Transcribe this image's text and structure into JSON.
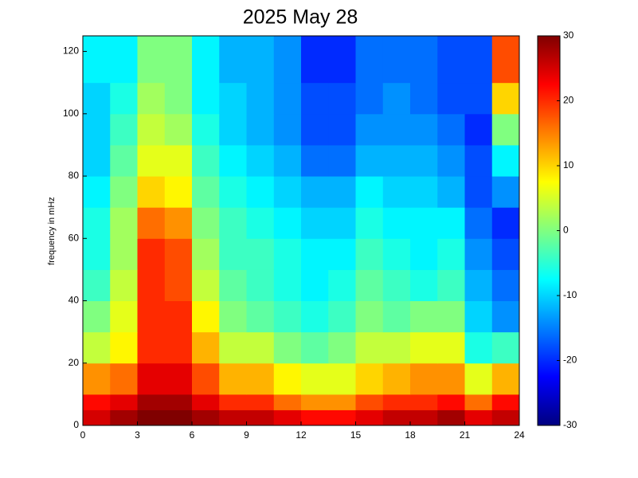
{
  "chart_data": {
    "type": "heatmap",
    "title": "2025 May 28",
    "y_label": "frequency in mHz",
    "x_edges": [
      0,
      1.5,
      3,
      4.5,
      6,
      7.5,
      9,
      10.5,
      12,
      13.5,
      15,
      16.5,
      18,
      19.5,
      21,
      22.5,
      24
    ],
    "y_edges": [
      0,
      5,
      10,
      20,
      30,
      40,
      50,
      60,
      70,
      80,
      90,
      100,
      110,
      125
    ],
    "z": [
      [
        25,
        28,
        30,
        30,
        28,
        26,
        26,
        24,
        22,
        22,
        24,
        26,
        26,
        28,
        24,
        26
      ],
      [
        22,
        24,
        28,
        28,
        24,
        20,
        20,
        16,
        14,
        14,
        18,
        20,
        20,
        22,
        16,
        22
      ],
      [
        14,
        16,
        24,
        24,
        18,
        12,
        12,
        8,
        6,
        6,
        10,
        12,
        14,
        14,
        6,
        12
      ],
      [
        4,
        8,
        20,
        20,
        12,
        4,
        4,
        0,
        -2,
        0,
        4,
        4,
        6,
        6,
        -6,
        -4
      ],
      [
        0,
        6,
        20,
        20,
        8,
        0,
        -2,
        -4,
        -6,
        -4,
        0,
        -2,
        0,
        0,
        -10,
        -14
      ],
      [
        -4,
        4,
        20,
        18,
        4,
        -2,
        -4,
        -6,
        -8,
        -6,
        -2,
        -4,
        -6,
        -4,
        -12,
        -16
      ],
      [
        -6,
        2,
        20,
        18,
        2,
        -4,
        -4,
        -6,
        -8,
        -8,
        -4,
        -6,
        -8,
        -6,
        -14,
        -18
      ],
      [
        -6,
        2,
        16,
        14,
        0,
        -4,
        -6,
        -8,
        -10,
        -10,
        -6,
        -8,
        -8,
        -8,
        -16,
        -20
      ],
      [
        -8,
        0,
        10,
        8,
        -2,
        -6,
        -8,
        -10,
        -12,
        -12,
        -8,
        -10,
        -10,
        -12,
        -18,
        -14
      ],
      [
        -10,
        -2,
        6,
        6,
        -4,
        -8,
        -10,
        -12,
        -16,
        -16,
        -12,
        -12,
        -12,
        -14,
        -18,
        -8
      ],
      [
        -10,
        -4,
        4,
        2,
        -6,
        -10,
        -12,
        -14,
        -18,
        -18,
        -14,
        -14,
        -14,
        -16,
        -20,
        0
      ],
      [
        -10,
        -6,
        2,
        0,
        -8,
        -10,
        -12,
        -14,
        -18,
        -18,
        -16,
        -14,
        -16,
        -18,
        -18,
        10
      ],
      [
        -8,
        -8,
        0,
        0,
        -8,
        -12,
        -12,
        -14,
        -20,
        -20,
        -16,
        -16,
        -16,
        -18,
        -18,
        18
      ]
    ],
    "xlim": [
      0,
      24
    ],
    "xticks": [
      0,
      3,
      6,
      9,
      12,
      15,
      18,
      21,
      24
    ],
    "ylim": [
      0,
      125
    ],
    "yticks": [
      0,
      20,
      40,
      60,
      80,
      100,
      120
    ],
    "clim": [
      -30,
      30
    ],
    "cticks": [
      -30,
      -20,
      -10,
      0,
      10,
      20,
      30
    ],
    "colormap": "jet"
  }
}
